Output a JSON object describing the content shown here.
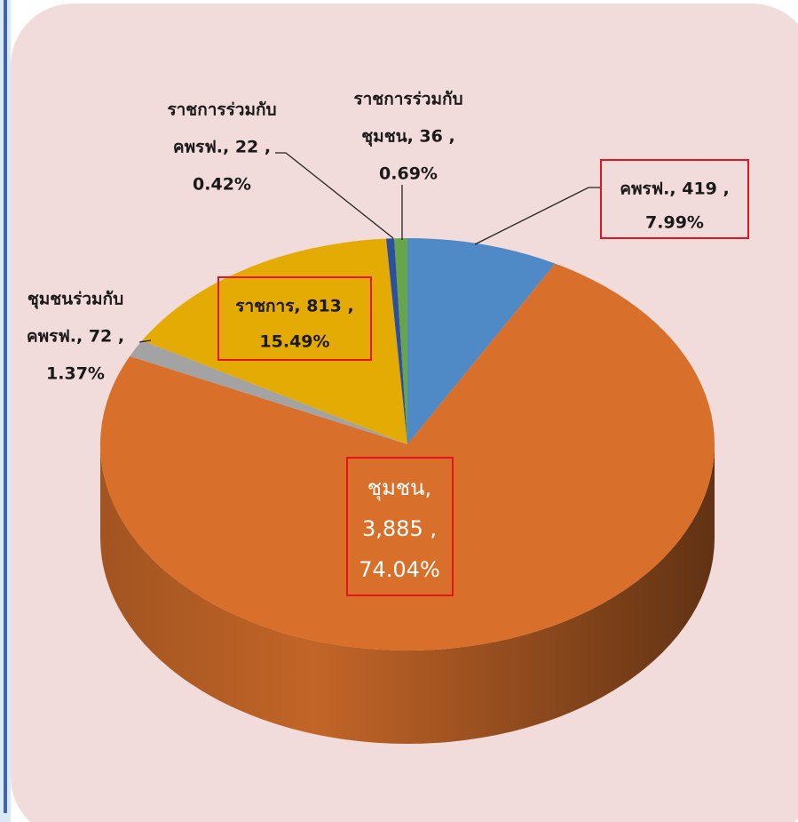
{
  "chart_data": {
    "type": "pie3d",
    "categories": [
      "คพรฟ.",
      "ชุมชน",
      "ชุมชนร่วมกับคพรฟ.",
      "ราชการ",
      "ราชการร่วมกับคพรฟ.",
      "ราชการร่วมกับชุมชน"
    ],
    "values": [
      419,
      3885,
      72,
      813,
      22,
      36
    ],
    "percents": [
      7.99,
      74.04,
      1.37,
      15.49,
      0.42,
      0.69
    ],
    "data_labels": [
      [
        "คพรฟ., 419 ,",
        "7.99%"
      ],
      [
        "ชุมชน,",
        "3,885 ,",
        "74.04%"
      ],
      [
        "ชุมชนร่วมกับ",
        "คพรฟ., 72 ,",
        "1.37%"
      ],
      [
        "ราชการ, 813 ,",
        "15.49%"
      ],
      [
        "ราชการร่วมกับ",
        "คพรฟ., 22 ,",
        "0.42%"
      ],
      [
        "ราชการร่วมกับ",
        "ชุมชน, 36 ,",
        "0.69%"
      ]
    ],
    "colors": [
      "#4f8ac6",
      "#d8702c",
      "#a3a3a3",
      "#e5ab05",
      "#2e4f9c",
      "#67a54a"
    ]
  }
}
